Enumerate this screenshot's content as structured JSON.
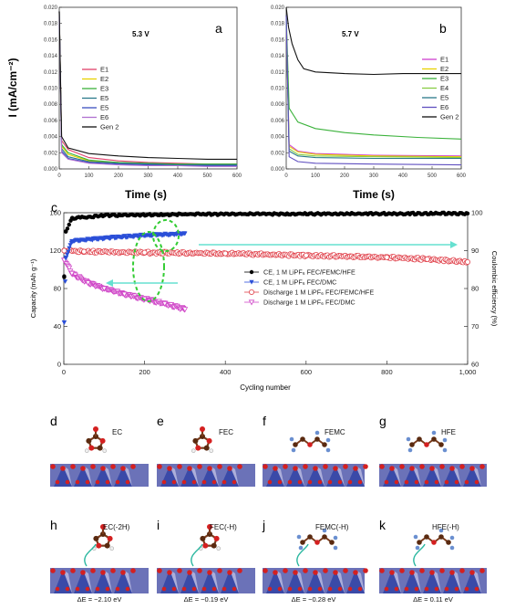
{
  "chart_data": [
    {
      "type": "line",
      "panel": "a",
      "annotation": "5.3 V",
      "xlabel": "Time (s)",
      "ylabel": "I (mA/cm⁻²)",
      "xlim": [
        0,
        600
      ],
      "ylim": [
        0,
        0.02
      ],
      "xticks": [
        "0",
        "100",
        "200",
        "300",
        "400",
        "500",
        "600"
      ],
      "yticks": [
        "0.000",
        "0.002",
        "0.004",
        "0.006",
        "0.008",
        "0.010",
        "0.012",
        "0.014",
        "0.016",
        "0.018",
        "0.020"
      ],
      "series": [
        {
          "name": "E1",
          "color": "#e0406a",
          "values": [
            [
              0,
              0.0195
            ],
            [
              8,
              0.0035
            ],
            [
              30,
              0.0024
            ],
            [
              100,
              0.0014
            ],
            [
              200,
              0.001
            ],
            [
              300,
              0.0008
            ],
            [
              400,
              0.0007
            ],
            [
              500,
              0.0006
            ],
            [
              600,
              0.0006
            ]
          ]
        },
        {
          "name": "E2",
          "color": "#e8d200",
          "values": [
            [
              0,
              0.0195
            ],
            [
              8,
              0.0028
            ],
            [
              30,
              0.0018
            ],
            [
              100,
              0.001
            ],
            [
              200,
              0.0008
            ],
            [
              300,
              0.0006
            ],
            [
              400,
              0.0005
            ],
            [
              500,
              0.0005
            ],
            [
              600,
              0.0005
            ]
          ]
        },
        {
          "name": "E3",
          "color": "#3bb23b",
          "values": [
            [
              0,
              0.0195
            ],
            [
              8,
              0.003
            ],
            [
              30,
              0.002
            ],
            [
              100,
              0.0011
            ],
            [
              200,
              0.0008
            ],
            [
              300,
              0.0007
            ],
            [
              400,
              0.0006
            ],
            [
              500,
              0.0006
            ],
            [
              600,
              0.0006
            ]
          ]
        },
        {
          "name": "E5",
          "color": "#2a7a8a",
          "values": [
            [
              0,
              0.0195
            ],
            [
              8,
              0.0025
            ],
            [
              30,
              0.0015
            ],
            [
              100,
              0.0009
            ],
            [
              200,
              0.0007
            ],
            [
              300,
              0.0006
            ],
            [
              400,
              0.0005
            ],
            [
              500,
              0.0005
            ],
            [
              600,
              0.0005
            ]
          ]
        },
        {
          "name": "E5",
          "color": "#3a4fbf",
          "values": [
            [
              0,
              0.0195
            ],
            [
              8,
              0.0022
            ],
            [
              30,
              0.0013
            ],
            [
              100,
              0.0008
            ],
            [
              200,
              0.0006
            ],
            [
              300,
              0.0005
            ],
            [
              400,
              0.0004
            ],
            [
              500,
              0.0004
            ],
            [
              600,
              0.0004
            ]
          ]
        },
        {
          "name": "E6",
          "color": "#b070d0",
          "values": [
            [
              0,
              0.0195
            ],
            [
              8,
              0.002
            ],
            [
              30,
              0.0012
            ],
            [
              100,
              0.0007
            ],
            [
              200,
              0.0005
            ],
            [
              300,
              0.0004
            ],
            [
              400,
              0.0004
            ],
            [
              500,
              0.0003
            ],
            [
              600,
              0.0003
            ]
          ]
        },
        {
          "name": "Gen 2",
          "color": "#111111",
          "values": [
            [
              0,
              0.0195
            ],
            [
              8,
              0.004
            ],
            [
              30,
              0.0026
            ],
            [
              100,
              0.0019
            ],
            [
              200,
              0.0016
            ],
            [
              300,
              0.0014
            ],
            [
              400,
              0.0013
            ],
            [
              500,
              0.0012
            ],
            [
              600,
              0.0012
            ]
          ]
        }
      ]
    },
    {
      "type": "line",
      "panel": "b",
      "annotation": "5.7 V",
      "xlabel": "Time (s)",
      "ylabel": "",
      "xlim": [
        0,
        600
      ],
      "ylim": [
        0,
        0.02
      ],
      "xticks": [
        "0",
        "100",
        "200",
        "300",
        "400",
        "500",
        "600"
      ],
      "yticks": [
        "0.000",
        "0.002",
        "0.004",
        "0.006",
        "0.008",
        "0.010",
        "0.012",
        "0.014",
        "0.016",
        "0.018",
        "0.020"
      ],
      "series": [
        {
          "name": "E1",
          "color": "#d040d0",
          "values": [
            [
              0,
              0.019
            ],
            [
              10,
              0.003
            ],
            [
              40,
              0.0022
            ],
            [
              100,
              0.0019
            ],
            [
              300,
              0.0017
            ],
            [
              600,
              0.0016
            ]
          ]
        },
        {
          "name": "E2",
          "color": "#e8d200",
          "values": [
            [
              0,
              0.019
            ],
            [
              10,
              0.0028
            ],
            [
              40,
              0.0021
            ],
            [
              100,
              0.0018
            ],
            [
              300,
              0.0016
            ],
            [
              600,
              0.0015
            ]
          ]
        },
        {
          "name": "E3",
          "color": "#3bb23b",
          "values": [
            [
              0,
              0.019
            ],
            [
              10,
              0.0075
            ],
            [
              40,
              0.0058
            ],
            [
              100,
              0.005
            ],
            [
              200,
              0.0045
            ],
            [
              300,
              0.0042
            ],
            [
              450,
              0.0039
            ],
            [
              600,
              0.0037
            ]
          ]
        },
        {
          "name": "E4",
          "color": "#88cc44",
          "values": [
            [
              0,
              0.019
            ],
            [
              10,
              0.0025
            ],
            [
              40,
              0.0018
            ],
            [
              100,
              0.0016
            ],
            [
              300,
              0.0015
            ],
            [
              600,
              0.0014
            ]
          ]
        },
        {
          "name": "E5",
          "color": "#2a7a8a",
          "values": [
            [
              0,
              0.019
            ],
            [
              10,
              0.0022
            ],
            [
              40,
              0.0016
            ],
            [
              100,
              0.0014
            ],
            [
              300,
              0.0013
            ],
            [
              600,
              0.0013
            ]
          ]
        },
        {
          "name": "E6",
          "color": "#6050c0",
          "values": [
            [
              0,
              0.019
            ],
            [
              10,
              0.0015
            ],
            [
              40,
              0.0009
            ],
            [
              100,
              0.0007
            ],
            [
              300,
              0.0006
            ],
            [
              600,
              0.0005
            ]
          ]
        },
        {
          "name": "Gen 2",
          "color": "#111111",
          "values": [
            [
              0,
              0.02
            ],
            [
              8,
              0.0175
            ],
            [
              20,
              0.0155
            ],
            [
              40,
              0.0135
            ],
            [
              60,
              0.0124
            ],
            [
              100,
              0.012
            ],
            [
              200,
              0.0118
            ],
            [
              300,
              0.0117
            ],
            [
              400,
              0.0118
            ],
            [
              500,
              0.0118
            ],
            [
              600,
              0.0118
            ]
          ]
        }
      ]
    },
    {
      "type": "scatter",
      "panel": "c",
      "xlabel": "Cycling number",
      "ylabel": "Capacity (mAh g⁻¹)",
      "y2label": "Coulombic efficiency (%)",
      "xlim": [
        0,
        1000
      ],
      "ylim": [
        0,
        160
      ],
      "y2lim": [
        60,
        100
      ],
      "xticks": [
        "0",
        "200",
        "400",
        "600",
        "800",
        "1,000"
      ],
      "yticks": [
        "0",
        "40",
        "80",
        "120",
        "160"
      ],
      "y2ticks": [
        "60",
        "70",
        "80",
        "90",
        "100"
      ],
      "series": [
        {
          "name": "CE, 1 M LiPF₆ FEC/FEMC/HFE",
          "axis": "right",
          "color": "#000000",
          "marker": "circle-filled",
          "values": [
            [
              1,
              83
            ],
            [
              5,
              95
            ],
            [
              20,
              98.5
            ],
            [
              100,
              99.3
            ],
            [
              300,
              99.6
            ],
            [
              600,
              99.7
            ],
            [
              1000,
              99.8
            ]
          ]
        },
        {
          "name": "CE, 1 M LiPF₆ FEC/DMC",
          "axis": "right",
          "color": "#2b4fd8",
          "marker": "triangle-down-filled",
          "values": [
            [
              1,
              71
            ],
            [
              5,
              88
            ],
            [
              20,
              92.5
            ],
            [
              100,
              93.3
            ],
            [
              200,
              94
            ],
            [
              300,
              94.5
            ]
          ]
        },
        {
          "name": "Discharge 1 M LiPF₆ FEC/FEMC/HFE",
          "axis": "left",
          "color": "#e0404a",
          "marker": "circle-open",
          "values": [
            [
              1,
              120
            ],
            [
              50,
              119
            ],
            [
              200,
              118
            ],
            [
              400,
              117
            ],
            [
              600,
              115
            ],
            [
              800,
              113
            ],
            [
              900,
              111
            ],
            [
              1000,
              108
            ]
          ]
        },
        {
          "name": "Discharge 1 M LiPF₆ FEC/DMC",
          "axis": "left",
          "color": "#d048c8",
          "marker": "triangle-down-open",
          "values": [
            [
              1,
              110
            ],
            [
              20,
              96
            ],
            [
              60,
              86
            ],
            [
              100,
              80
            ],
            [
              150,
              74
            ],
            [
              200,
              69
            ],
            [
              250,
              64
            ],
            [
              300,
              58
            ]
          ]
        }
      ]
    }
  ],
  "panels": {
    "a": {
      "letter": "a",
      "voltage": "5.3 V"
    },
    "b": {
      "letter": "b",
      "voltage": "5.7 V"
    },
    "c": {
      "letter": "c"
    }
  },
  "molecules": {
    "top": [
      {
        "letter": "d",
        "label": "EC"
      },
      {
        "letter": "e",
        "label": "FEC"
      },
      {
        "letter": "f",
        "label": "FEMC"
      },
      {
        "letter": "g",
        "label": "HFE"
      }
    ],
    "bottom": [
      {
        "letter": "h",
        "label": "EC(-2H)",
        "energy": "ΔE = −2.10 eV"
      },
      {
        "letter": "i",
        "label": "FEC(-H)",
        "energy": "ΔE = −0.19 eV"
      },
      {
        "letter": "j",
        "label": "FEMC(-H)",
        "energy": "ΔE = −0.28 eV"
      },
      {
        "letter": "k",
        "label": "HFE(-H)",
        "energy": "ΔE = 0.11 eV"
      }
    ]
  },
  "colors": {
    "highlight": "#33cc33",
    "arrow": "#66e0d0",
    "voltage_text": "#e0303a",
    "slab_blue": "#3a4aa8",
    "oxygen": "#d42020",
    "carbon": "#5a2a10",
    "hydrogen": "#f0f0f0",
    "fluorine": "#6a8fd0"
  }
}
